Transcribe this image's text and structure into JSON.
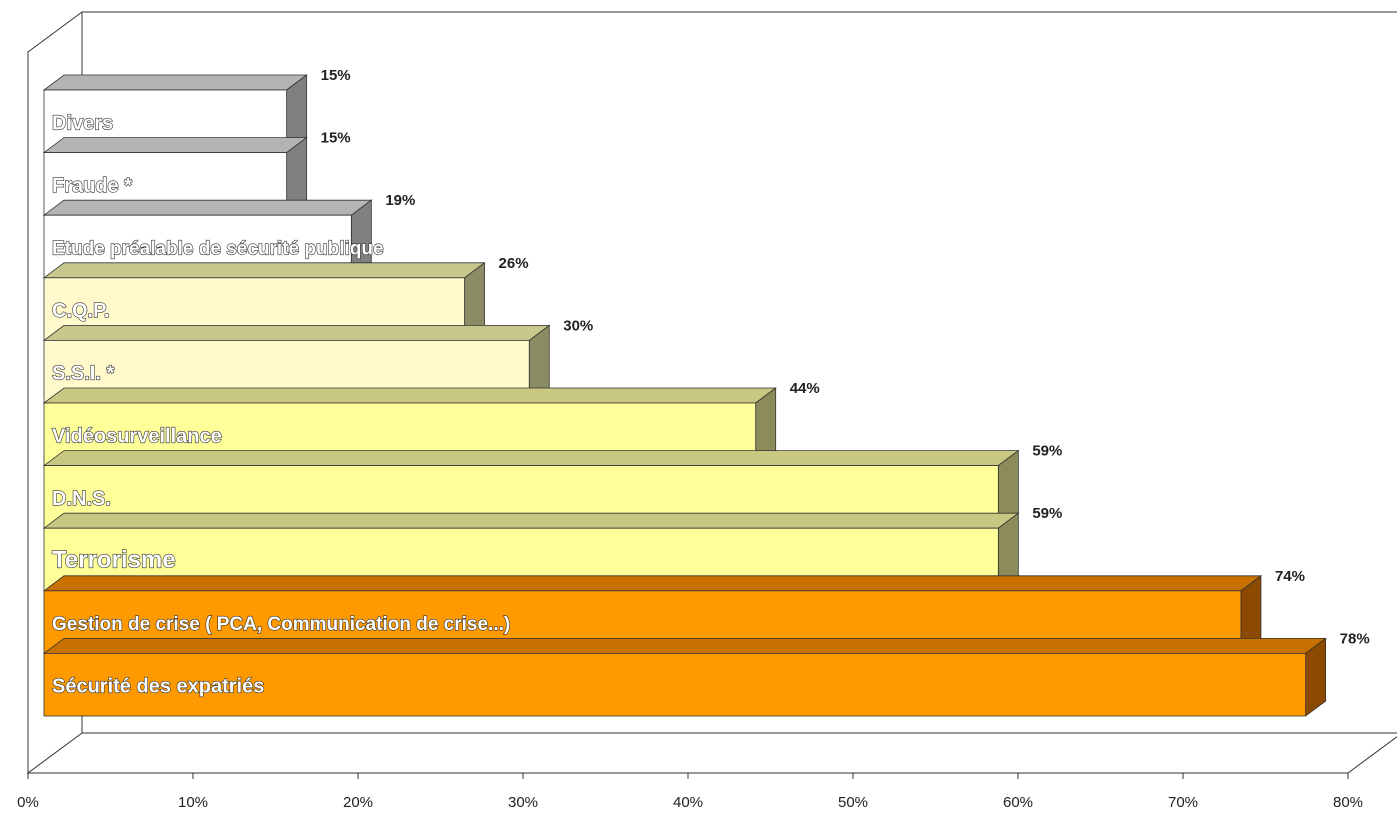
{
  "chart_data": {
    "type": "bar",
    "orientation": "horizontal",
    "three_d": true,
    "title": "",
    "xlabel": "",
    "ylabel": "",
    "xlim": [
      0,
      80
    ],
    "x_ticks": [
      "0%",
      "10%",
      "20%",
      "30%",
      "40%",
      "50%",
      "60%",
      "70%",
      "80%"
    ],
    "value_suffix": "%",
    "grid": false,
    "legend": "none",
    "bars": [
      {
        "label": "Divers",
        "value": 15,
        "color": "#ffffff",
        "side_color": "#808080",
        "top_color": "#b4b4b4"
      },
      {
        "label": "Fraude *",
        "value": 15,
        "color": "#ffffff",
        "side_color": "#808080",
        "top_color": "#b4b4b4"
      },
      {
        "label": "Etude préalable de sécurité publique",
        "value": 19,
        "color": "#ffffff",
        "side_color": "#808080",
        "top_color": "#b4b4b4"
      },
      {
        "label": "C.Q.P.",
        "value": 26,
        "color": "#fff9cc",
        "side_color": "#8c8c64",
        "top_color": "#c8c88c"
      },
      {
        "label": "S.S.I. *",
        "value": 30,
        "color": "#fff9cc",
        "side_color": "#8c8c64",
        "top_color": "#c8c88c"
      },
      {
        "label": "Vidéosurveillance",
        "value": 44,
        "color": "#ffff99",
        "side_color": "#8c8c5a",
        "top_color": "#c8c882"
      },
      {
        "label": "D.N.S.",
        "value": 59,
        "color": "#ffff99",
        "side_color": "#8c8c5a",
        "top_color": "#c8c882"
      },
      {
        "label": "Terrorisme",
        "value": 59,
        "color": "#ffff99",
        "side_color": "#8c8c5a",
        "top_color": "#c8c882"
      },
      {
        "label": "Gestion de crise ( PCA, Communication de crise...)",
        "value": 74,
        "color": "#ff9900",
        "side_color": "#8c4a00",
        "top_color": "#c87000"
      },
      {
        "label": "Sécurité des expatriés",
        "value": 78,
        "color": "#ff9900",
        "side_color": "#8c4a00",
        "top_color": "#c87000"
      }
    ],
    "value_labels": [
      "15%",
      "15%",
      "19%",
      "26%",
      "30%",
      "44%",
      "59%",
      "59%",
      "74%",
      "78%"
    ]
  }
}
